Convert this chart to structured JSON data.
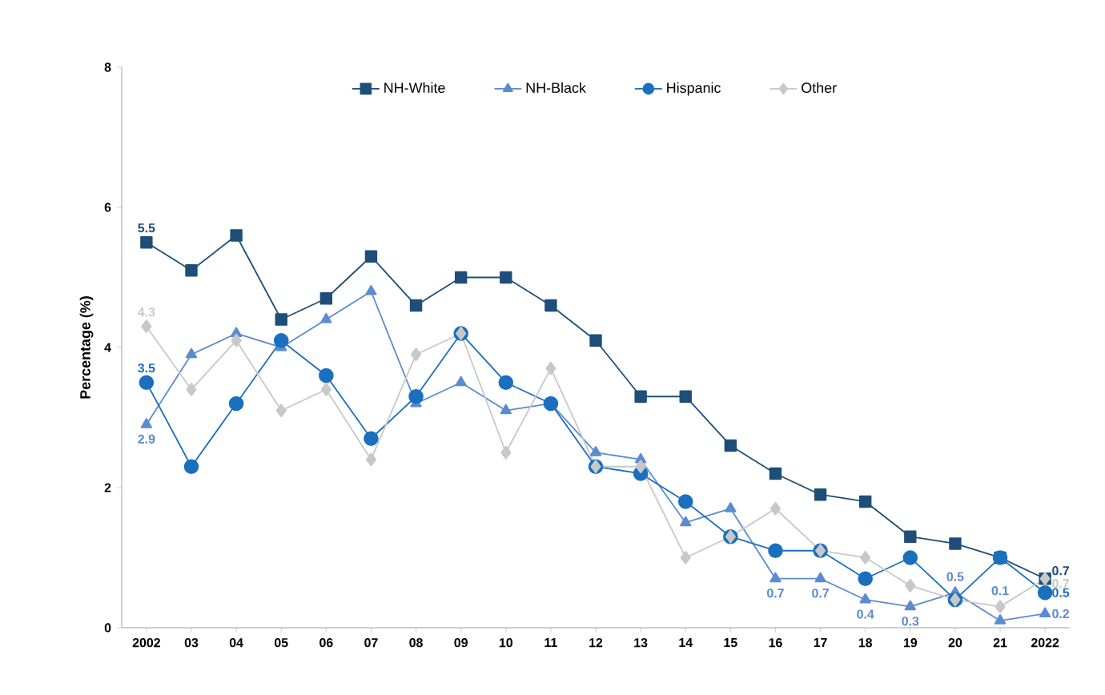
{
  "chart_data": {
    "type": "line",
    "ylabel": "Percentage (%)",
    "categories": [
      "2002",
      "03",
      "04",
      "05",
      "06",
      "07",
      "08",
      "09",
      "10",
      "11",
      "12",
      "13",
      "14",
      "15",
      "16",
      "17",
      "18",
      "19",
      "20",
      "21",
      "2022"
    ],
    "ylim": [
      0,
      8
    ],
    "yticks": [
      0,
      2,
      4,
      6,
      8
    ],
    "grid": false,
    "legend": "top",
    "series": [
      {
        "name": "NH-White",
        "color": "#1f4e79",
        "marker": "square",
        "values": [
          5.5,
          5.1,
          5.6,
          4.4,
          4.7,
          5.3,
          4.6,
          5.0,
          5.0,
          4.6,
          4.1,
          3.3,
          3.3,
          2.6,
          2.2,
          1.9,
          1.8,
          1.3,
          1.2,
          1.0,
          0.7
        ],
        "value_labels": [
          "5.5",
          null,
          null,
          null,
          null,
          null,
          null,
          null,
          null,
          null,
          null,
          null,
          null,
          null,
          null,
          null,
          null,
          null,
          null,
          null,
          "0.7"
        ]
      },
      {
        "name": "NH-Black",
        "color": "#5b8bd0",
        "marker": "triangle",
        "values": [
          2.9,
          3.9,
          4.2,
          4.0,
          4.4,
          4.8,
          3.2,
          3.5,
          3.1,
          3.2,
          2.5,
          2.4,
          1.5,
          1.7,
          0.7,
          0.7,
          0.4,
          0.3,
          0.5,
          0.1,
          0.2
        ],
        "value_labels": [
          "2.9",
          null,
          null,
          null,
          null,
          null,
          null,
          null,
          null,
          null,
          null,
          null,
          null,
          null,
          "0.7",
          "0.7",
          "0.4",
          "0.3",
          "0.5",
          "0.1",
          "0.2"
        ]
      },
      {
        "name": "Hispanic",
        "color": "#1a6fbf",
        "marker": "circle",
        "values": [
          3.5,
          2.3,
          3.2,
          4.1,
          3.6,
          2.7,
          3.3,
          4.2,
          3.5,
          3.2,
          2.3,
          2.2,
          1.8,
          1.3,
          1.1,
          1.1,
          0.7,
          1.0,
          0.4,
          1.0,
          0.5
        ],
        "value_labels": [
          "3.5",
          null,
          null,
          null,
          null,
          null,
          null,
          null,
          null,
          null,
          null,
          null,
          null,
          null,
          null,
          null,
          null,
          null,
          null,
          null,
          "0.5"
        ]
      },
      {
        "name": "Other",
        "color": "#c8c8c8",
        "marker": "diamond",
        "values": [
          4.3,
          3.4,
          4.1,
          3.1,
          3.4,
          2.4,
          3.9,
          4.2,
          2.5,
          3.7,
          2.3,
          2.3,
          1.0,
          1.3,
          1.7,
          1.1,
          1.0,
          0.6,
          0.4,
          0.3,
          0.7
        ],
        "value_labels": [
          "4.3",
          null,
          null,
          null,
          null,
          null,
          null,
          null,
          null,
          null,
          null,
          null,
          null,
          null,
          null,
          null,
          null,
          null,
          null,
          null,
          "0.7"
        ]
      }
    ]
  }
}
